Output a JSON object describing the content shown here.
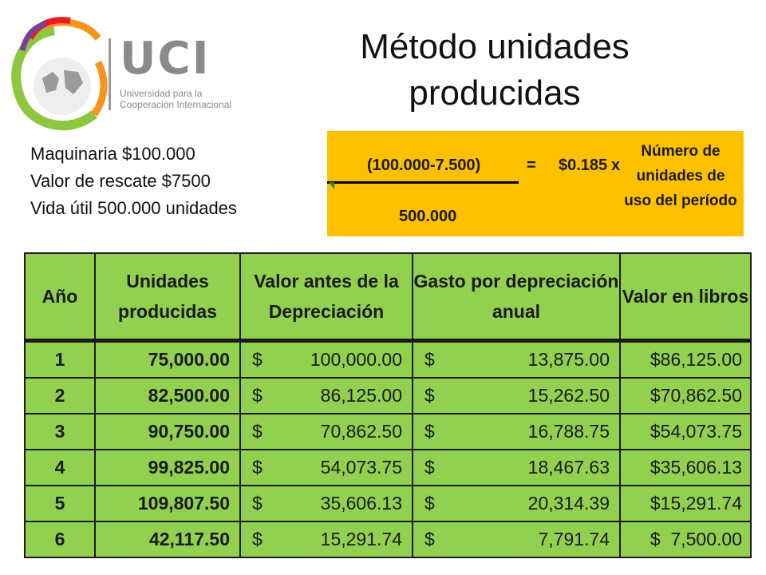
{
  "logo": {
    "brand": "UCI",
    "subtitle_line1": "Universidad para la",
    "subtitle_line2": "Cooperación Internacional"
  },
  "title": "Método unidades producidas",
  "info": {
    "line1": "Maquinaria $100.000",
    "line2": "Valor de rescate $7500",
    "line3": "Vida útil 500.000 unidades"
  },
  "formula": {
    "numerator": "(100.000-7.500)",
    "denominator": "500.000",
    "equals": "=",
    "rate": "$0.185",
    "times": "x",
    "units_line1": "Número de",
    "units_line2": "unidades de",
    "units_line3": "uso del período",
    "color": "#ffc000"
  },
  "table": {
    "headers": [
      "Año",
      "Unidades producidas",
      "Valor antes de la Depreciación",
      "Gasto por depreciación anual",
      "Valor en libros"
    ],
    "currency": "$",
    "rows": [
      {
        "year": "1",
        "units": "75,000.00",
        "value_before": "100,000.00",
        "expense": "13,875.00",
        "book": "$86,125.00"
      },
      {
        "year": "2",
        "units": "82,500.00",
        "value_before": "86,125.00",
        "expense": "15,262.50",
        "book": "$70,862.50"
      },
      {
        "year": "3",
        "units": "90,750.00",
        "value_before": "70,862.50",
        "expense": "16,788.75",
        "book": "$54,073.75"
      },
      {
        "year": "4",
        "units": "99,825.00",
        "value_before": "54,073.75",
        "expense": "18,467.63",
        "book": "$35,606.13"
      },
      {
        "year": "5",
        "units": "109,807.50",
        "value_before": "35,606.13",
        "expense": "20,314.39",
        "book": "$15,291.74"
      },
      {
        "year": "6",
        "units": "42,117.50",
        "value_before": "15,291.74",
        "expense": "7,791.74",
        "book": "$  7,500.00"
      }
    ],
    "color": "#92d050"
  }
}
